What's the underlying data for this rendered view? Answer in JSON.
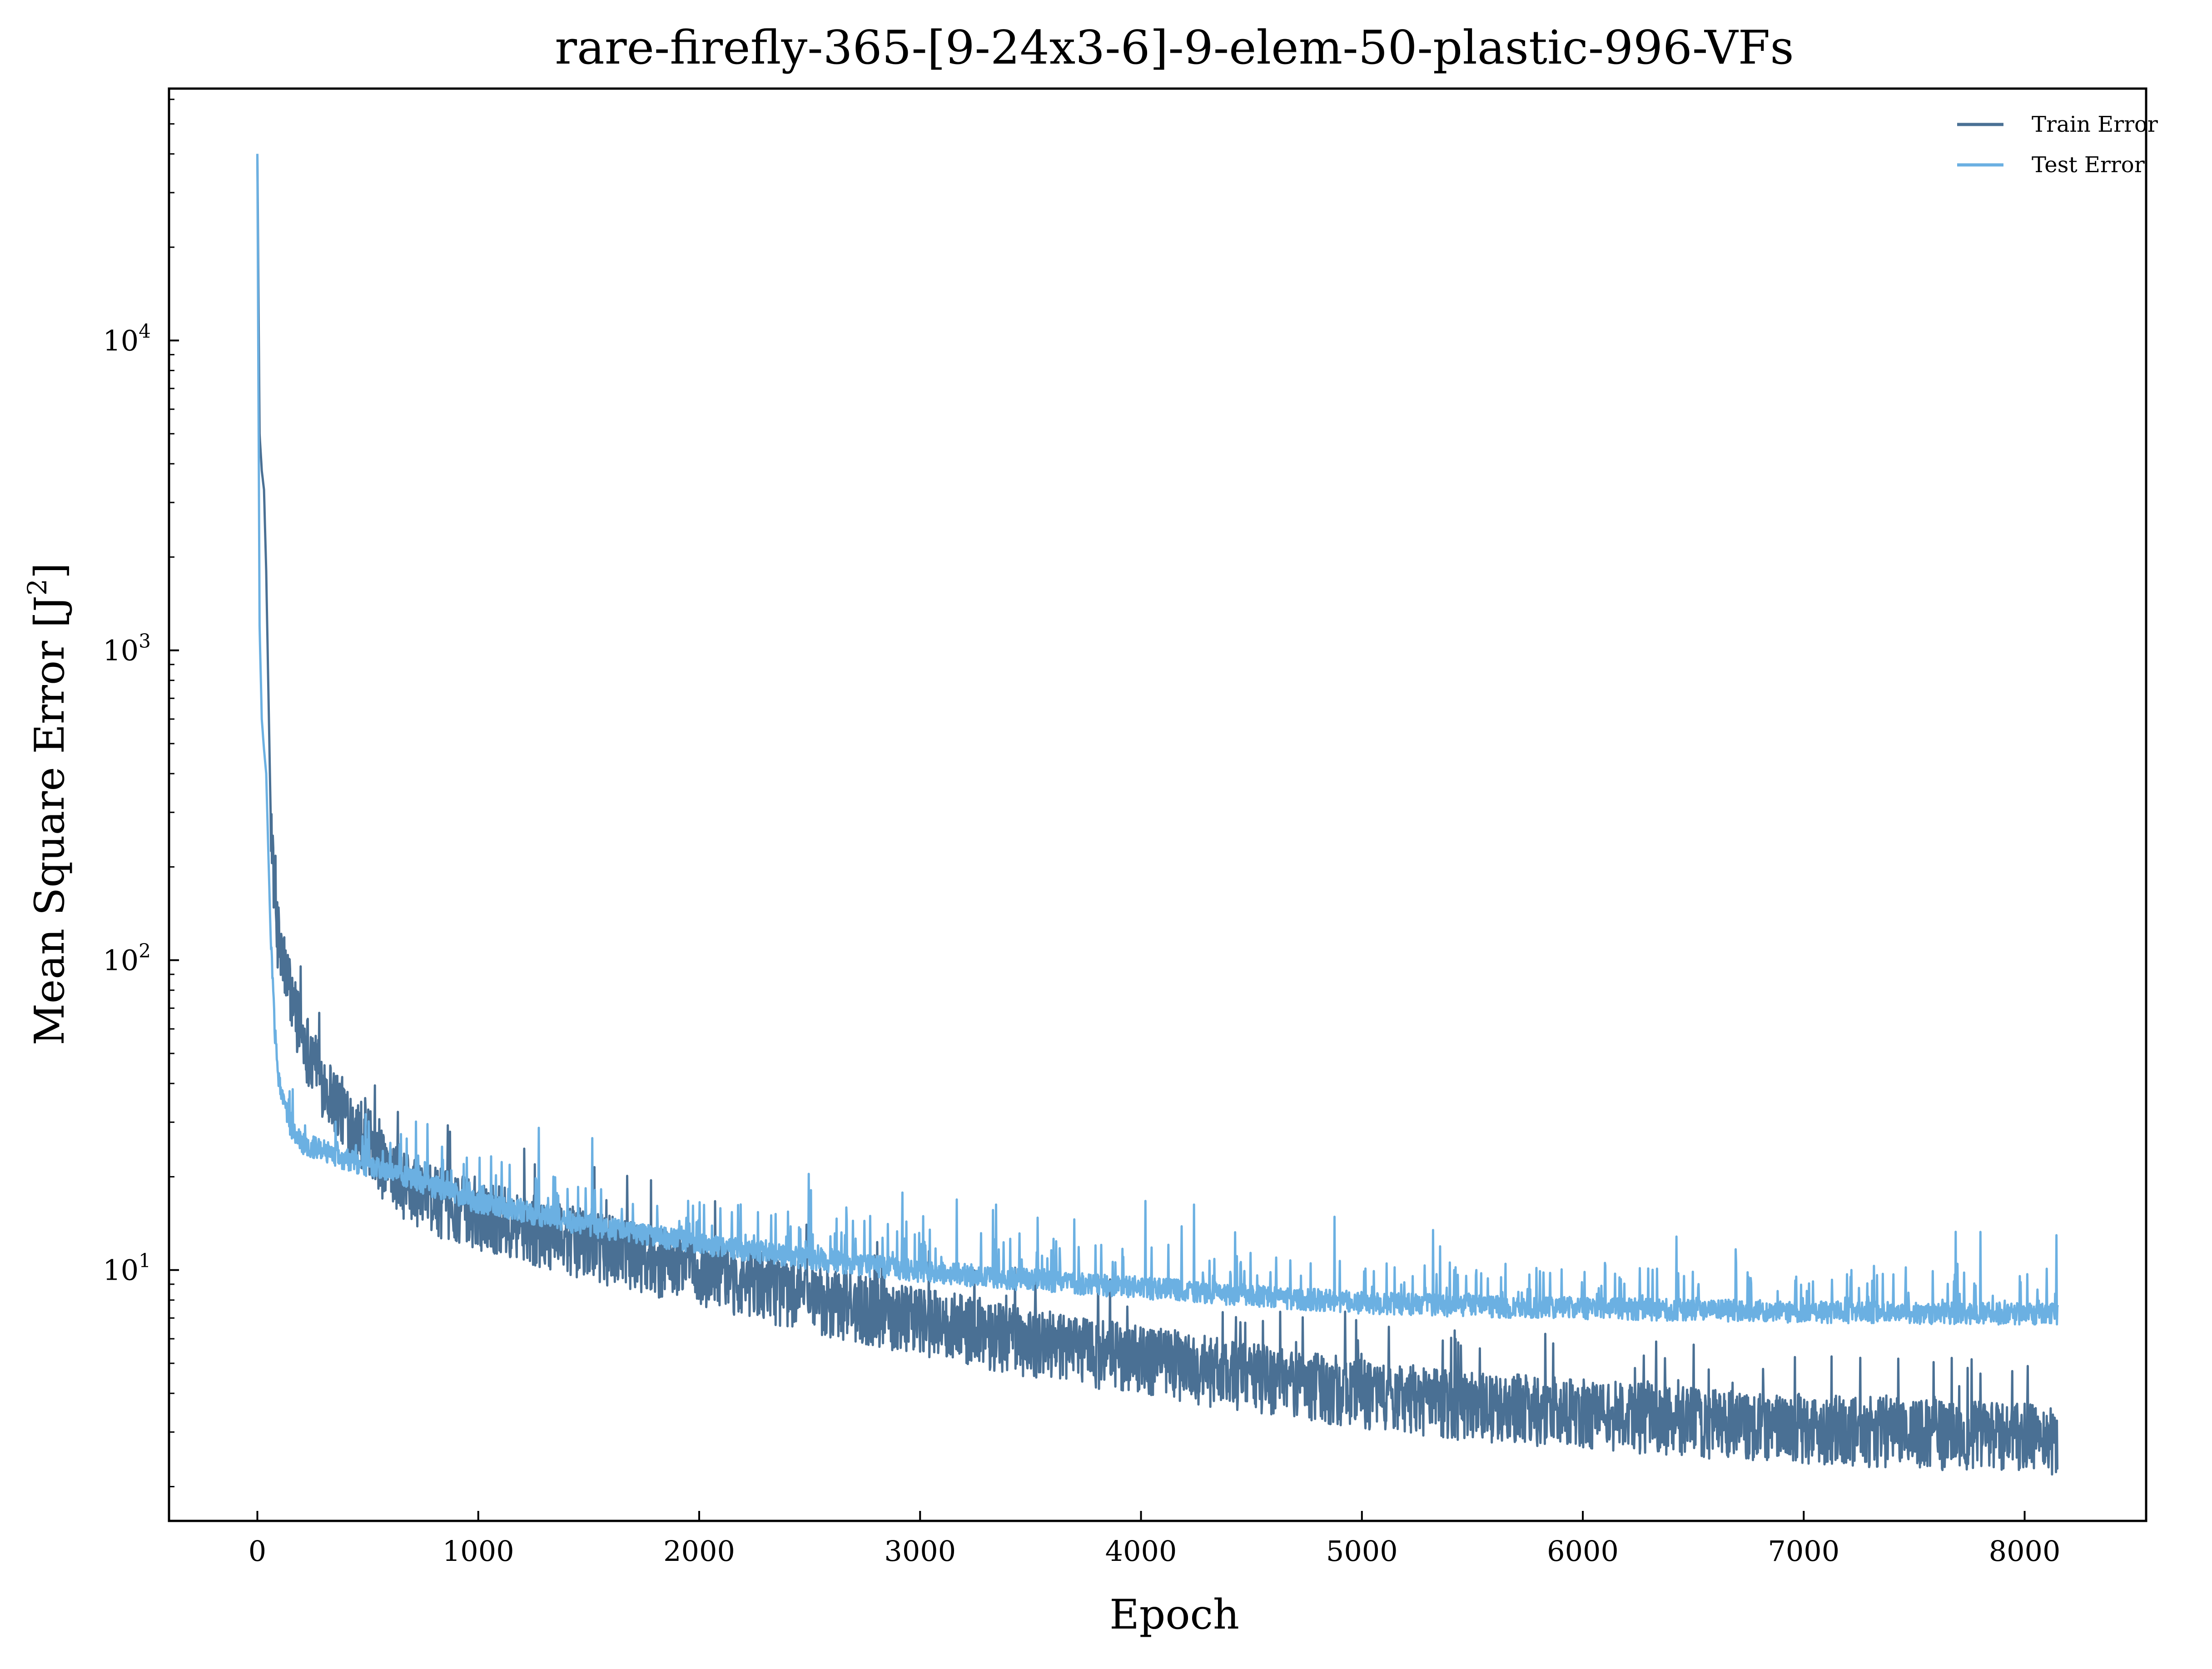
{
  "chart_data": {
    "type": "line",
    "title": "rare-firefly-365-[9-24x3-6]-9-elem-50-plastic-996-VFs",
    "xlabel": "Epoch",
    "ylabel": "Mean Square Error [J²]",
    "ylabel_base": "Mean Square Error [J",
    "ylabel_sup": "2",
    "ylabel_close": "]",
    "xscale": "linear",
    "yscale": "log",
    "xlim": [
      -400,
      8550
    ],
    "ylim": [
      1.55,
      65000
    ],
    "xticks": [
      0,
      1000,
      2000,
      3000,
      4000,
      5000,
      6000,
      7000,
      8000
    ],
    "xtick_labels": [
      "0",
      "1000",
      "2000",
      "3000",
      "4000",
      "5000",
      "6000",
      "7000",
      "8000"
    ],
    "yticks": [
      {
        "value": 10,
        "base": "10",
        "exp": "1"
      },
      {
        "value": 100,
        "base": "10",
        "exp": "2"
      },
      {
        "value": 1000,
        "base": "10",
        "exp": "3"
      },
      {
        "value": 10000,
        "base": "10",
        "exp": "4"
      }
    ],
    "legend_position": "top-right",
    "grid": false,
    "total_epochs": 8150,
    "series": [
      {
        "name": "Train Error",
        "color": "#4a7094",
        "x": [
          0,
          10,
          20,
          30,
          40,
          60,
          80,
          100,
          150,
          200,
          300,
          400,
          500,
          600,
          800,
          1000,
          1200,
          1500,
          2000,
          2500,
          3000,
          3500,
          4000,
          4500,
          5000,
          5500,
          6000,
          6500,
          7000,
          7500,
          8000,
          8150
        ],
        "values": [
          40000,
          5000,
          3800,
          3300,
          1800,
          300,
          140,
          105,
          75,
          55,
          38,
          30,
          25,
          19,
          16,
          14.5,
          13.2,
          11.5,
          9.5,
          7.8,
          6.6,
          5.6,
          4.9,
          4.3,
          3.8,
          3.5,
          3.3,
          3.1,
          2.95,
          2.85,
          2.75,
          2.7
        ],
        "noise_low": 0.8,
        "noise_high": 1.9
      },
      {
        "name": "Test Error",
        "color": "#6bb0e2",
        "x": [
          0,
          10,
          20,
          30,
          40,
          60,
          80,
          100,
          150,
          200,
          300,
          400,
          500,
          600,
          800,
          1000,
          1200,
          1500,
          2000,
          2500,
          3000,
          3500,
          4000,
          4500,
          5000,
          5500,
          6000,
          6500,
          7000,
          7500,
          8000,
          8150
        ],
        "values": [
          40000,
          1200,
          600,
          480,
          400,
          120,
          55,
          38,
          28,
          25,
          23.5,
          22,
          21,
          20,
          18,
          16,
          15,
          13.5,
          11.8,
          10.5,
          9.6,
          9.0,
          8.5,
          8.0,
          7.6,
          7.4,
          7.3,
          7.2,
          7.1,
          7.05,
          7.0,
          7.0
        ],
        "noise_low": 0.95,
        "noise_high": 1.45
      }
    ]
  }
}
